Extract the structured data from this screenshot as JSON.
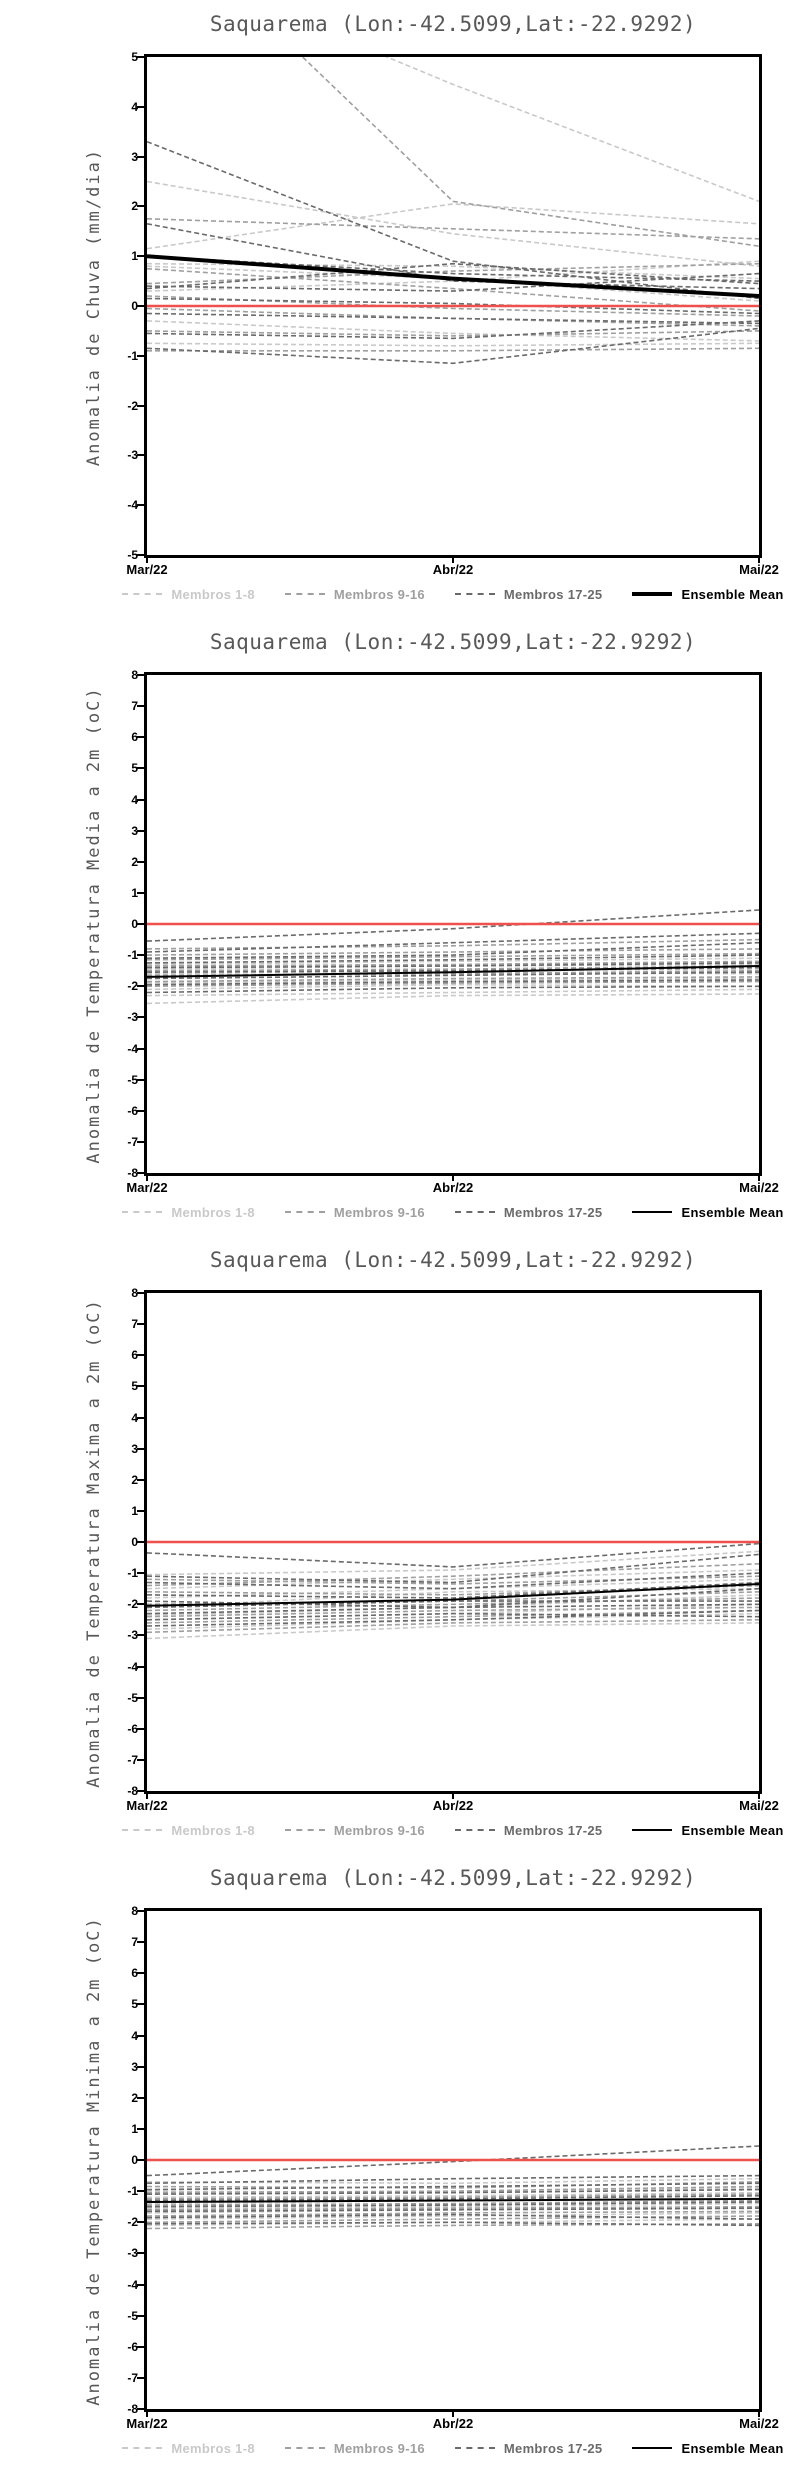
{
  "page": {
    "background": "#ffffff"
  },
  "shared": {
    "title": "Saquarema (Lon:-42.5099,Lat:-22.9292)",
    "x_labels": [
      "Mar/22",
      "Abr/22",
      "Mai/22"
    ],
    "zero_line_color": "#f0504b",
    "member_colors": {
      "g1": "#c9c9c9",
      "g2": "#9f9f9f",
      "g3": "#6a6a6a"
    },
    "legend_labels": [
      "Membros 1-8",
      "Membros 9-16",
      "Membros 17-25",
      "Ensemble Mean"
    ]
  },
  "chart_data": [
    {
      "type": "line",
      "title": "Saquarema (Lon:-42.5099,Lat:-22.9292)",
      "ylabel": "Anomalia de Chuva (mm/dia)",
      "xlabel": "",
      "x_labels": [
        "Mar/22",
        "Abr/22",
        "Mai/22"
      ],
      "ylim": [
        -5,
        5
      ],
      "yticks": [
        5,
        4,
        3,
        2,
        1,
        0,
        -1,
        -2,
        -3,
        -4,
        -5
      ],
      "grid": false,
      "legend_position": "bottom",
      "zero_line": {
        "value": 0,
        "color": "#f0504b"
      },
      "mean": {
        "label": "Ensemble Mean",
        "color": "#000000",
        "line_width": 4,
        "values": [
          1.0,
          0.55,
          0.2
        ]
      },
      "groups": [
        {
          "label": "Membros 1-8",
          "color": "#c9c9c9",
          "series": [
            [
              2.5,
              1.45,
              0.8
            ],
            [
              1.15,
              2.05,
              1.65
            ],
            [
              0.85,
              0.8,
              0.55
            ],
            [
              0.8,
              0.55,
              0.1
            ],
            [
              0.3,
              0.5,
              0.9
            ],
            [
              -0.3,
              -0.55,
              -0.7
            ],
            [
              -0.75,
              -0.8,
              -0.75
            ],
            [
              7.0,
              4.45,
              2.1
            ]
          ]
        },
        {
          "label": "Membros 9-16",
          "color": "#9f9f9f",
          "series": [
            [
              8.0,
              2.1,
              1.2
            ],
            [
              1.75,
              1.55,
              1.35
            ],
            [
              0.45,
              0.7,
              0.85
            ],
            [
              0.2,
              -0.05,
              -0.2
            ],
            [
              -0.05,
              -0.25,
              -0.4
            ],
            [
              -0.5,
              -0.6,
              -0.5
            ],
            [
              -0.9,
              -0.9,
              -0.85
            ],
            [
              0.75,
              0.35,
              -0.1
            ]
          ]
        },
        {
          "label": "Membros 17-25",
          "color": "#6a6a6a",
          "series": [
            [
              3.3,
              0.9,
              0.15
            ],
            [
              1.65,
              0.5,
              0.35
            ],
            [
              1.0,
              0.65,
              0.5
            ],
            [
              0.4,
              0.3,
              0.65
            ],
            [
              0.35,
              0.85,
              0.45
            ],
            [
              0.15,
              0.05,
              -0.15
            ],
            [
              -0.15,
              -0.25,
              -0.35
            ],
            [
              -0.55,
              -0.65,
              -0.3
            ],
            [
              -0.85,
              -1.15,
              -0.45
            ]
          ]
        }
      ]
    },
    {
      "type": "line",
      "title": "Saquarema (Lon:-42.5099,Lat:-22.9292)",
      "ylabel": "Anomalia de Temperatura Media a 2m (oC)",
      "xlabel": "",
      "x_labels": [
        "Mar/22",
        "Abr/22",
        "Mai/22"
      ],
      "ylim": [
        -8,
        8
      ],
      "yticks": [
        8,
        7,
        6,
        5,
        4,
        3,
        2,
        1,
        0,
        -1,
        -2,
        -3,
        -4,
        -5,
        -6,
        -7,
        -8
      ],
      "grid": false,
      "legend_position": "bottom",
      "zero_line": {
        "value": 0,
        "color": "#f0504b"
      },
      "mean": {
        "label": "Ensemble Mean",
        "color": "#000000",
        "line_width": 2,
        "values": [
          -1.7,
          -1.55,
          -1.35
        ]
      },
      "groups": [
        {
          "label": "Membros 1-8",
          "color": "#c9c9c9",
          "series": [
            [
              -1.3,
              -1.2,
              -1.1
            ],
            [
              -1.45,
              -1.35,
              -1.3
            ],
            [
              -1.6,
              -1.5,
              -1.45
            ],
            [
              -1.7,
              -1.55,
              -1.6
            ],
            [
              -1.9,
              -1.8,
              -1.75
            ],
            [
              -2.1,
              -1.95,
              -2.0
            ],
            [
              -2.3,
              -2.2,
              -2.1
            ],
            [
              -2.55,
              -2.3,
              -2.25
            ]
          ]
        },
        {
          "label": "Membros 9-16",
          "color": "#9f9f9f",
          "series": [
            [
              -0.8,
              -0.7,
              -0.5
            ],
            [
              -1.0,
              -0.9,
              -0.8
            ],
            [
              -1.15,
              -1.05,
              -0.95
            ],
            [
              -1.35,
              -1.3,
              -1.2
            ],
            [
              -1.5,
              -1.45,
              -1.35
            ],
            [
              -1.65,
              -1.6,
              -1.5
            ],
            [
              -1.85,
              -1.75,
              -1.7
            ],
            [
              -2.0,
              -1.9,
              -1.85
            ]
          ]
        },
        {
          "label": "Membros 17-25",
          "color": "#6a6a6a",
          "series": [
            [
              -0.55,
              -0.15,
              0.45
            ],
            [
              -0.9,
              -0.6,
              -0.3
            ],
            [
              -1.1,
              -1.0,
              -0.6
            ],
            [
              -1.25,
              -1.15,
              -1.0
            ],
            [
              -1.4,
              -1.35,
              -1.25
            ],
            [
              -1.55,
              -1.5,
              -1.4
            ],
            [
              -1.75,
              -1.65,
              -1.55
            ],
            [
              -1.95,
              -1.85,
              -1.8
            ],
            [
              -2.2,
              -2.05,
              -2.0
            ]
          ]
        }
      ]
    },
    {
      "type": "line",
      "title": "Saquarema (Lon:-42.5099,Lat:-22.9292)",
      "ylabel": "Anomalia de Temperatura Maxima a 2m (oC)",
      "xlabel": "",
      "x_labels": [
        "Mar/22",
        "Abr/22",
        "Mai/22"
      ],
      "ylim": [
        -8,
        8
      ],
      "yticks": [
        8,
        7,
        6,
        5,
        4,
        3,
        2,
        1,
        0,
        -1,
        -2,
        -3,
        -4,
        -5,
        -6,
        -7,
        -8
      ],
      "grid": false,
      "legend_position": "bottom",
      "zero_line": {
        "value": 0,
        "color": "#f0504b"
      },
      "mean": {
        "label": "Ensemble Mean",
        "color": "#000000",
        "line_width": 2,
        "values": [
          -2.05,
          -1.85,
          -1.35
        ]
      },
      "groups": [
        {
          "label": "Membros 1-8",
          "color": "#c9c9c9",
          "series": [
            [
              -1.05,
              -0.9,
              -0.3
            ],
            [
              -1.5,
              -1.2,
              -0.9
            ],
            [
              -1.8,
              -1.5,
              -1.2
            ],
            [
              -2.1,
              -1.6,
              -1.5
            ],
            [
              -2.35,
              -2.1,
              -1.7
            ],
            [
              -2.5,
              -2.3,
              -2.0
            ],
            [
              -2.8,
              -2.5,
              -2.3
            ],
            [
              -3.1,
              -2.7,
              -2.6
            ]
          ]
        },
        {
          "label": "Membros 9-16",
          "color": "#9f9f9f",
          "series": [
            [
              -1.2,
              -1.35,
              -1.1
            ],
            [
              -1.6,
              -1.7,
              -1.4
            ],
            [
              -2.0,
              -1.9,
              -1.6
            ],
            [
              -2.2,
              -2.0,
              -1.8
            ],
            [
              -2.4,
              -2.2,
              -2.1
            ],
            [
              -2.6,
              -2.4,
              -2.2
            ],
            [
              -2.9,
              -2.6,
              -2.5
            ],
            [
              -1.4,
              -1.1,
              -0.7
            ]
          ]
        },
        {
          "label": "Membros 17-25",
          "color": "#6a6a6a",
          "series": [
            [
              -0.35,
              -0.8,
              -0.05
            ],
            [
              -1.1,
              -1.3,
              -0.4
            ],
            [
              -1.3,
              -1.5,
              -1.0
            ],
            [
              -1.7,
              -1.8,
              -1.3
            ],
            [
              -1.9,
              -2.1,
              -1.5
            ],
            [
              -2.1,
              -1.9,
              -1.9
            ],
            [
              -2.3,
              -2.1,
              -2.0
            ],
            [
              -2.5,
              -2.3,
              -2.4
            ],
            [
              -2.7,
              -2.5,
              -2.2
            ]
          ]
        }
      ]
    },
    {
      "type": "line",
      "title": "Saquarema (Lon:-42.5099,Lat:-22.9292)",
      "ylabel": "Anomalia de Temperatura Minima a 2m (oC)",
      "xlabel": "",
      "x_labels": [
        "Mar/22",
        "Abr/22",
        "Mai/22"
      ],
      "ylim": [
        -8,
        8
      ],
      "yticks": [
        8,
        7,
        6,
        5,
        4,
        3,
        2,
        1,
        0,
        -1,
        -2,
        -3,
        -4,
        -5,
        -6,
        -7,
        -8
      ],
      "grid": false,
      "legend_position": "bottom",
      "zero_line": {
        "value": 0,
        "color": "#f0504b"
      },
      "mean": {
        "label": "Ensemble Mean",
        "color": "#000000",
        "line_width": 2,
        "values": [
          -1.35,
          -1.3,
          -1.25
        ]
      },
      "groups": [
        {
          "label": "Membros 1-8",
          "color": "#c9c9c9",
          "series": [
            [
              -0.7,
              -0.75,
              -0.6
            ],
            [
              -1.0,
              -1.05,
              -0.9
            ],
            [
              -1.2,
              -1.15,
              -1.05
            ],
            [
              -1.4,
              -1.3,
              -1.25
            ],
            [
              -1.55,
              -1.5,
              -1.4
            ],
            [
              -1.7,
              -1.6,
              -1.55
            ],
            [
              -1.9,
              -1.8,
              -1.7
            ],
            [
              -2.1,
              -2.0,
              -1.9
            ]
          ]
        },
        {
          "label": "Membros 9-16",
          "color": "#9f9f9f",
          "series": [
            [
              -0.85,
              -0.9,
              -0.7
            ],
            [
              -1.05,
              -1.0,
              -0.85
            ],
            [
              -1.25,
              -1.2,
              -1.1
            ],
            [
              -1.45,
              -1.4,
              -1.3
            ],
            [
              -1.6,
              -1.55,
              -1.5
            ],
            [
              -1.8,
              -1.7,
              -1.65
            ],
            [
              -2.0,
              -1.9,
              -1.8
            ],
            [
              -2.2,
              -2.1,
              -2.05
            ]
          ]
        },
        {
          "label": "Membros 17-25",
          "color": "#6a6a6a",
          "series": [
            [
              -0.5,
              -0.05,
              0.45
            ],
            [
              -0.75,
              -0.6,
              -0.5
            ],
            [
              -0.95,
              -0.85,
              -0.75
            ],
            [
              -1.1,
              -1.05,
              -0.95
            ],
            [
              -1.3,
              -1.25,
              -1.15
            ],
            [
              -1.5,
              -1.45,
              -1.35
            ],
            [
              -1.65,
              -1.6,
              -1.55
            ],
            [
              -1.85,
              -1.75,
              -1.9
            ],
            [
              -2.05,
              -2.0,
              -2.1
            ]
          ]
        }
      ]
    }
  ]
}
